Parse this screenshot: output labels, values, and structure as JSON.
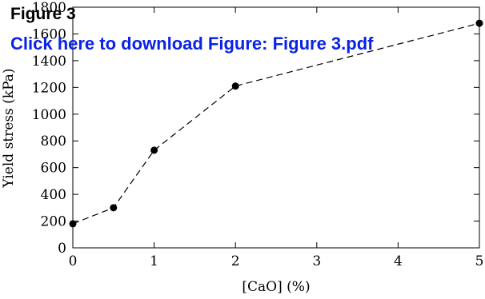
{
  "overlay": {
    "title": "Figure 3",
    "download_link": "Click here to download Figure: Figure 3.pdf",
    "link_color": "#0b22e8"
  },
  "chart_data": {
    "type": "line",
    "title": "",
    "xlabel": "[CaO] (%)",
    "ylabel": "Yield stress (kPa)",
    "x": [
      0,
      0.5,
      1,
      2,
      5
    ],
    "series": [
      {
        "values": [
          180,
          300,
          730,
          1210,
          1680
        ],
        "line_style": "dashed",
        "marker": "filled-circle",
        "color": "#000000"
      }
    ],
    "xlim": [
      0,
      5
    ],
    "ylim": [
      0,
      1800
    ],
    "x_ticks": [
      0,
      1,
      2,
      3,
      4,
      5
    ],
    "y_ticks": [
      0,
      200,
      400,
      600,
      800,
      1000,
      1200,
      1400,
      1600,
      1800
    ],
    "grid": false,
    "legend": "none"
  }
}
